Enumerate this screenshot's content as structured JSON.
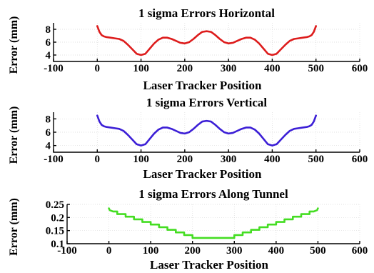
{
  "chart_data": [
    {
      "type": "line",
      "title": "1 sigma Errors Horizontal",
      "xlabel": "Laser Tracker Position",
      "ylabel": "Error (mm)",
      "xlim": [
        -100,
        600
      ],
      "ylim": [
        3,
        9
      ],
      "xticks": [
        -100,
        0,
        100,
        200,
        300,
        400,
        500,
        600
      ],
      "yticks": [
        4,
        6,
        8
      ],
      "grid": true,
      "color": "#dd1c1c",
      "series": [
        {
          "x": [
            0,
            5,
            10,
            15,
            20,
            30,
            40,
            50,
            60,
            70,
            80,
            90,
            100,
            110,
            120,
            130,
            140,
            150,
            160,
            170,
            180,
            190,
            200,
            210,
            220,
            230,
            240,
            250,
            260,
            270,
            280,
            290,
            300,
            310,
            320,
            330,
            340,
            350,
            360,
            370,
            380,
            390,
            400,
            410,
            420,
            430,
            440,
            450,
            460,
            470,
            480,
            485,
            490,
            495,
            500
          ],
          "y": [
            8.5,
            7.6,
            7.1,
            6.9,
            6.8,
            6.7,
            6.6,
            6.5,
            6.2,
            5.6,
            4.9,
            4.2,
            4.0,
            4.2,
            5.0,
            5.8,
            6.4,
            6.7,
            6.7,
            6.5,
            6.2,
            5.9,
            5.8,
            6.0,
            6.5,
            7.1,
            7.6,
            7.7,
            7.6,
            7.1,
            6.5,
            6.0,
            5.8,
            5.9,
            6.2,
            6.5,
            6.7,
            6.7,
            6.4,
            5.8,
            5.0,
            4.2,
            4.0,
            4.2,
            4.9,
            5.6,
            6.2,
            6.5,
            6.6,
            6.7,
            6.8,
            6.9,
            7.1,
            7.6,
            8.5
          ]
        }
      ]
    },
    {
      "type": "line",
      "title": "1 sigma Errors Vertical",
      "xlabel": "Laser Tracker Position",
      "ylabel": "Error (mm)",
      "xlim": [
        -100,
        600
      ],
      "ylim": [
        3,
        9
      ],
      "xticks": [
        -100,
        0,
        100,
        200,
        300,
        400,
        500,
        600
      ],
      "yticks": [
        4,
        6,
        8
      ],
      "grid": true,
      "color": "#3c1fd6",
      "series": [
        {
          "x": [
            0,
            5,
            10,
            15,
            20,
            30,
            40,
            50,
            60,
            70,
            80,
            90,
            100,
            110,
            120,
            130,
            140,
            150,
            160,
            170,
            180,
            190,
            200,
            210,
            220,
            230,
            240,
            250,
            260,
            270,
            280,
            290,
            300,
            310,
            320,
            330,
            340,
            350,
            360,
            370,
            380,
            390,
            400,
            410,
            420,
            430,
            440,
            450,
            460,
            470,
            480,
            485,
            490,
            495,
            500
          ],
          "y": [
            8.5,
            7.6,
            7.1,
            6.9,
            6.8,
            6.7,
            6.6,
            6.5,
            6.2,
            5.6,
            4.9,
            4.2,
            4.0,
            4.2,
            5.0,
            5.8,
            6.4,
            6.7,
            6.7,
            6.5,
            6.2,
            5.9,
            5.8,
            6.0,
            6.5,
            7.1,
            7.6,
            7.7,
            7.6,
            7.1,
            6.5,
            6.0,
            5.8,
            5.9,
            6.2,
            6.5,
            6.7,
            6.7,
            6.4,
            5.8,
            5.0,
            4.2,
            4.0,
            4.2,
            4.9,
            5.6,
            6.2,
            6.5,
            6.6,
            6.7,
            6.8,
            6.9,
            7.1,
            7.6,
            8.5
          ]
        }
      ]
    },
    {
      "type": "line",
      "title": "1 sigma Errors Along Tunnel",
      "xlabel": "Laser Tracker Position",
      "ylabel": "Error (mm)",
      "xlim": [
        -100,
        600
      ],
      "ylim": [
        0.1,
        0.25
      ],
      "xticks": [
        -100,
        0,
        100,
        200,
        300,
        400,
        500,
        600
      ],
      "yticks": [
        0.1,
        0.15,
        0.2,
        0.25
      ],
      "grid": true,
      "color": "#44dd22",
      "series": [
        {
          "x": [
            0,
            2,
            10,
            20,
            20,
            40,
            40,
            60,
            60,
            80,
            80,
            100,
            100,
            120,
            120,
            140,
            140,
            160,
            160,
            180,
            180,
            200,
            200,
            300,
            300,
            320,
            320,
            340,
            340,
            360,
            360,
            380,
            380,
            400,
            400,
            420,
            420,
            440,
            440,
            460,
            460,
            480,
            480,
            490,
            498,
            500
          ],
          "y": [
            0.235,
            0.228,
            0.223,
            0.223,
            0.213,
            0.213,
            0.203,
            0.203,
            0.193,
            0.193,
            0.183,
            0.183,
            0.173,
            0.173,
            0.163,
            0.163,
            0.153,
            0.153,
            0.143,
            0.143,
            0.133,
            0.133,
            0.122,
            0.122,
            0.133,
            0.133,
            0.143,
            0.143,
            0.153,
            0.153,
            0.163,
            0.163,
            0.173,
            0.173,
            0.183,
            0.183,
            0.193,
            0.193,
            0.203,
            0.203,
            0.213,
            0.213,
            0.223,
            0.223,
            0.228,
            0.235
          ]
        }
      ]
    }
  ]
}
